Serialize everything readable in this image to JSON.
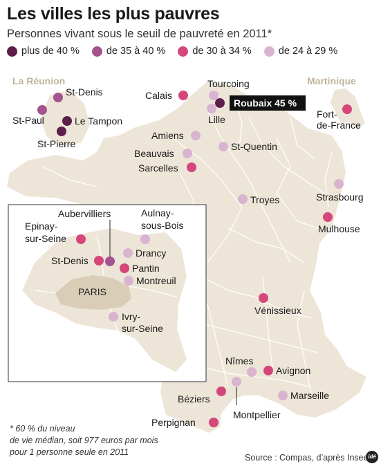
{
  "title": "Les villes les plus pauvres",
  "subtitle": "Personnes vivant sous le seuil de pauvreté en 2011*",
  "colors": {
    "plus40": "#5e1e4c",
    "35_40": "#a3538e",
    "30_34": "#d5467b",
    "24_29": "#d9b4d1",
    "land": "#ede5d7",
    "border": "#ffffff",
    "inset_bg": "#ffffff",
    "paris": "#d9cdb6",
    "region_label": "#c2b49a"
  },
  "legend": [
    {
      "label": "plus de 40 %",
      "color": "#5e1e4c"
    },
    {
      "label": "de 35 à 40 %",
      "color": "#a3538e"
    },
    {
      "label": "de 30 à 34 %",
      "color": "#d5467b"
    },
    {
      "label": "de 24 à 29 %",
      "color": "#d9b4d1"
    }
  ],
  "regions": {
    "reunion": "La Réunion",
    "martinique": "Martinique"
  },
  "highlight": "Roubaix 45 %",
  "paris_label": "PARIS",
  "cities": {
    "st_denis_reunion": "St-Denis",
    "st_paul": "St-Paul",
    "le_tampon": "Le Tampon",
    "st_pierre": "St-Pierre",
    "calais": "Calais",
    "tourcoing": "Tourcoing",
    "lille": "Lille",
    "amiens": "Amiens",
    "beauvais": "Beauvais",
    "st_quentin": "St-Quentin",
    "sarcelles": "Sarcelles",
    "fort_de_france": [
      "Fort-",
      "de-France"
    ],
    "strasbourg": "Strasbourg",
    "mulhouse": "Mulhouse",
    "troyes": "Troyes",
    "venissieux": "Vénissieux",
    "nimes": "Nîmes",
    "avignon": "Avignon",
    "marseille": "Marseille",
    "montpellier": "Montpellier",
    "beziers": "Béziers",
    "perpignan": "Perpignan",
    "aubervilliers": "Aubervilliers",
    "aulnay": [
      "Aulnay-",
      "sous-Bois"
    ],
    "epinay": [
      "Epinay-",
      "sur-Seine"
    ],
    "st_denis_idf": "St-Denis",
    "drancy": "Drancy",
    "pantin": "Pantin",
    "montreuil": "Montreuil",
    "ivry": [
      "Ivry-",
      "sur-Seine"
    ]
  },
  "footnote": [
    "* 60 % du niveau",
    "de vie médian, soit 977 euros par mois",
    "pour 1 personne seule en 2011"
  ],
  "source": "Source : Compas, d’après Insee",
  "logo": "idé"
}
